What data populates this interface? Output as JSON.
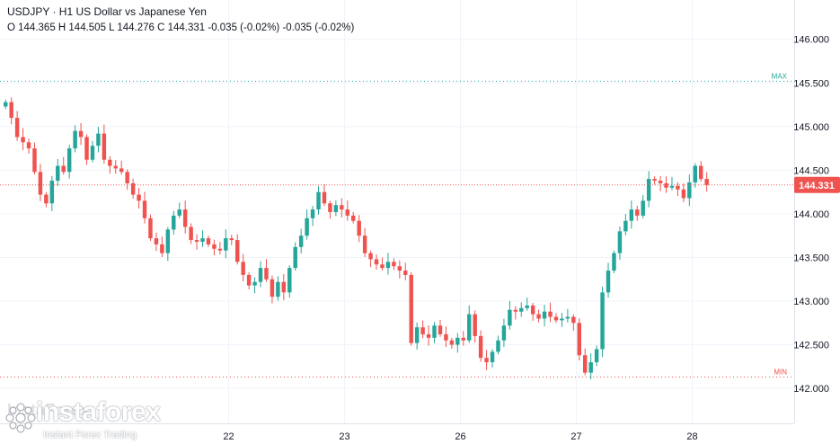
{
  "header": {
    "title": "USDJPY · H1 US Dollar vs Japanese Yen",
    "ohlc": "O 144.365 H 144.505 L 144.276 C 144.331 -0.035 (-0.02%) -0.035 (-0.02%)"
  },
  "watermark": {
    "ghost": "InstaForex",
    "brand": "instaforex",
    "tagline": "Instant Forex Trading",
    "logo": "instaforex-logo-icon"
  },
  "colors": {
    "up": "#26a69a",
    "down": "#ef5350",
    "grid": "#f0f3fa",
    "axis_text": "#131722",
    "price_line": "#ef5350",
    "max_line": "#26a69a",
    "min_line": "#ef5350"
  },
  "chart_data": {
    "type": "candlestick",
    "symbol": "USDJPY",
    "timeframe": "H1",
    "ylim": [
      141.6,
      146.45
    ],
    "y_ticks": [
      "146.000",
      "145.500",
      "145.000",
      "144.500",
      "144.000",
      "143.500",
      "143.000",
      "142.500",
      "142.000"
    ],
    "x_ticks": [
      {
        "label": "22",
        "index": 39
      },
      {
        "label": "23",
        "index": 59
      },
      {
        "label": "26",
        "index": 79
      },
      {
        "label": "27",
        "index": 99
      },
      {
        "label": "28",
        "index": 119
      }
    ],
    "visible_bars": 137,
    "grid": true,
    "last_price": {
      "value": 144.331,
      "label": "144.331"
    },
    "max_line": {
      "value": 145.52,
      "label": "MAX"
    },
    "min_line": {
      "value": 142.13,
      "label": "MIN"
    },
    "closes": [
      145.28,
      145.1,
      144.88,
      144.82,
      144.75,
      144.48,
      144.22,
      144.12,
      144.38,
      144.55,
      144.48,
      144.75,
      144.95,
      144.88,
      144.62,
      144.78,
      144.92,
      144.62,
      144.55,
      144.52,
      144.48,
      144.35,
      144.22,
      144.15,
      143.95,
      143.72,
      143.65,
      143.55,
      143.82,
      143.98,
      144.05,
      143.85,
      143.7,
      143.68,
      143.72,
      143.65,
      143.6,
      143.58,
      143.72,
      143.7,
      143.45,
      143.3,
      143.18,
      143.22,
      143.38,
      143.25,
      143.05,
      143.22,
      143.1,
      143.38,
      143.62,
      143.75,
      143.95,
      144.05,
      144.25,
      144.12,
      144.02,
      144.1,
      144.05,
      143.98,
      143.92,
      143.75,
      143.55,
      143.48,
      143.42,
      143.38,
      143.45,
      143.4,
      143.35,
      143.3,
      142.52,
      142.7,
      142.62,
      142.58,
      142.72,
      142.62,
      142.55,
      142.5,
      142.58,
      142.55,
      142.85,
      142.6,
      142.35,
      142.3,
      142.42,
      142.55,
      142.72,
      142.9,
      142.88,
      142.92,
      142.95,
      142.85,
      142.8,
      142.88,
      142.82,
      142.78,
      142.8,
      142.82,
      142.75,
      142.38,
      142.18,
      142.3,
      142.45,
      143.1,
      143.35,
      143.55,
      143.8,
      143.92,
      144.05,
      143.98,
      144.15,
      144.4,
      144.38,
      144.35,
      144.3,
      144.32,
      144.28,
      144.18,
      144.36,
      144.55,
      144.4,
      144.33
    ]
  }
}
